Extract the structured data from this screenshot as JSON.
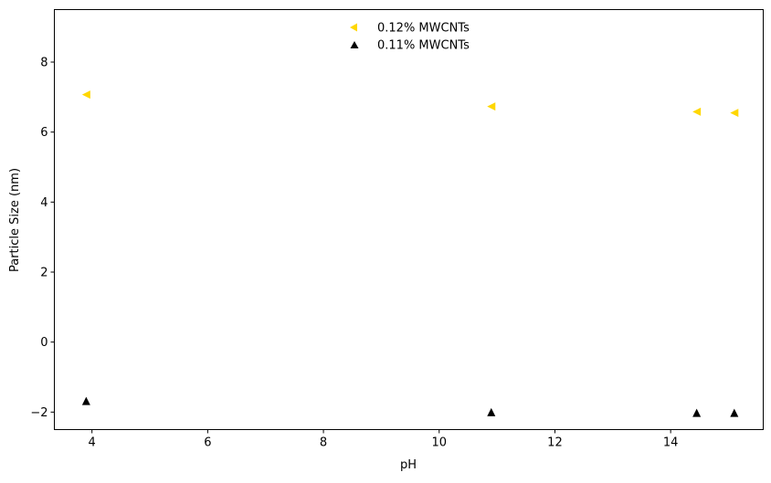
{
  "chart_data": {
    "type": "scatter",
    "title": "",
    "xlabel": "pH",
    "ylabel": "Particle Size (nm)",
    "xlim": [
      3.35,
      15.6
    ],
    "ylim": [
      -2.5,
      9.5
    ],
    "xticks": [
      4,
      6,
      8,
      10,
      12,
      14
    ],
    "yticks": [
      -2,
      0,
      2,
      4,
      6,
      8
    ],
    "grid": false,
    "legend_position": "upper-center",
    "series": [
      {
        "name": "0.12% MWCNTs",
        "marker": "triangle-left",
        "color": "#ffd700",
        "x": [
          3.9,
          10.9,
          14.45,
          15.1
        ],
        "y": [
          7.07,
          6.73,
          6.58,
          6.55
        ]
      },
      {
        "name": "0.11% MWCNTs",
        "marker": "triangle-up",
        "color": "#000000",
        "x": [
          3.9,
          10.9,
          14.45,
          15.1
        ],
        "y": [
          -1.68,
          -2.0,
          -2.02,
          -2.02
        ]
      }
    ]
  }
}
